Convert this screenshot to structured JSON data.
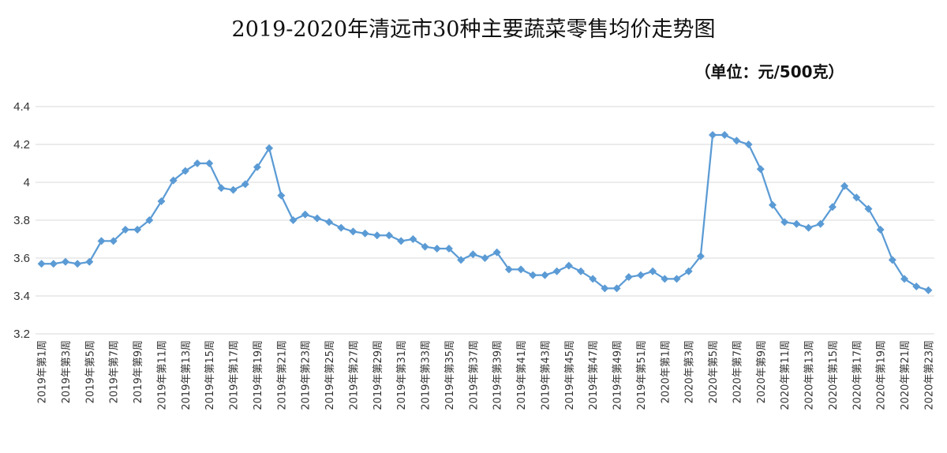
{
  "chart_data": {
    "type": "line",
    "title": "2019-2020年清远市30种主要蔬菜零售均价走势图",
    "unit_note": "（单位：元/500克）",
    "ylim": [
      3.2,
      4.4
    ],
    "y_ticks": [
      "3.2",
      "3.4",
      "3.6",
      "3.8",
      "4",
      "4.2",
      "4.4"
    ],
    "grid": true,
    "legend": "none",
    "color": "#5b9bd5",
    "categories": [
      "2019年第1周",
      "2019年第2周",
      "2019年第3周",
      "2019年第4周",
      "2019年第5周",
      "2019年第6周",
      "2019年第7周",
      "2019年第8周",
      "2019年第9周",
      "2019年第10周",
      "2019年第11周",
      "2019年第12周",
      "2019年第13周",
      "2019年第14周",
      "2019年第15周",
      "2019年第16周",
      "2019年第17周",
      "2019年第18周",
      "2019年第19周",
      "2019年第20周",
      "2019年第21周",
      "2019年第22周",
      "2019年第23周",
      "2019年第24周",
      "2019年第25周",
      "2019年第26周",
      "2019年第27周",
      "2019年第28周",
      "2019年第29周",
      "2019年第30周",
      "2019年第31周",
      "2019年第32周",
      "2019年第33周",
      "2019年第34周",
      "2019年第35周",
      "2019年第36周",
      "2019年第37周",
      "2019年第38周",
      "2019年第39周",
      "2019年第40周",
      "2019年第41周",
      "2019年第42周",
      "2019年第43周",
      "2019年第44周",
      "2019年第45周",
      "2019年第46周",
      "2019年第47周",
      "2019年第48周",
      "2019年第49周",
      "2019年第50周",
      "2019年第51周",
      "2019年第52周",
      "2020年第1周",
      "2020年第2周",
      "2020年第3周",
      "2020年第4周",
      "2020年第5周",
      "2020年第6周",
      "2020年第7周",
      "2020年第8周",
      "2020年第9周",
      "2020年第10周",
      "2020年第11周",
      "2020年第12周",
      "2020年第13周",
      "2020年第14周",
      "2020年第15周",
      "2020年第16周",
      "2020年第17周",
      "2020年第18周",
      "2020年第19周",
      "2020年第20周",
      "2020年第21周",
      "2020年第22周",
      "2020年第23周"
    ],
    "shown_labels": [
      "2019年第1周",
      "2019年第3周",
      "2019年第5周",
      "2019年第7周",
      "2019年第9周",
      "2019年第11周",
      "2019年第13周",
      "2019年第15周",
      "2019年第17周",
      "2019年第19周",
      "2019年第21周",
      "2019年第23周",
      "2019年第25周",
      "2019年第27周",
      "2019年第29周",
      "2019年第31周",
      "2019年第33周",
      "2019年第35周",
      "2019年第37周",
      "2019年第39周",
      "2019年第41周",
      "2019年第43周",
      "2019年第45周",
      "2019年第47周",
      "2019年第49周",
      "2019年第51周",
      "2020年第1周",
      "2020年第3周",
      "2020年第5周",
      "2020年第7周",
      "2020年第9周",
      "2020年第11周",
      "2020年第13周",
      "2020年第15周",
      "2020年第17周",
      "2020年第19周",
      "2020年第21周",
      "2020年第23周"
    ],
    "values": [
      3.57,
      3.57,
      3.58,
      3.57,
      3.58,
      3.69,
      3.69,
      3.75,
      3.75,
      3.8,
      3.9,
      4.01,
      4.06,
      4.1,
      4.1,
      3.97,
      3.96,
      3.99,
      4.08,
      4.18,
      3.93,
      3.8,
      3.83,
      3.81,
      3.79,
      3.76,
      3.74,
      3.73,
      3.72,
      3.72,
      3.69,
      3.7,
      3.66,
      3.65,
      3.65,
      3.59,
      3.62,
      3.6,
      3.63,
      3.54,
      3.54,
      3.51,
      3.51,
      3.53,
      3.56,
      3.53,
      3.49,
      3.44,
      3.44,
      3.5,
      3.51,
      3.53,
      3.49,
      3.49,
      3.53,
      3.61,
      4.25,
      4.25,
      4.22,
      4.2,
      4.07,
      3.88,
      3.79,
      3.78,
      3.76,
      3.78,
      3.87,
      3.98,
      3.92,
      3.86,
      3.75,
      3.59,
      3.49,
      3.45,
      3.43
    ]
  }
}
